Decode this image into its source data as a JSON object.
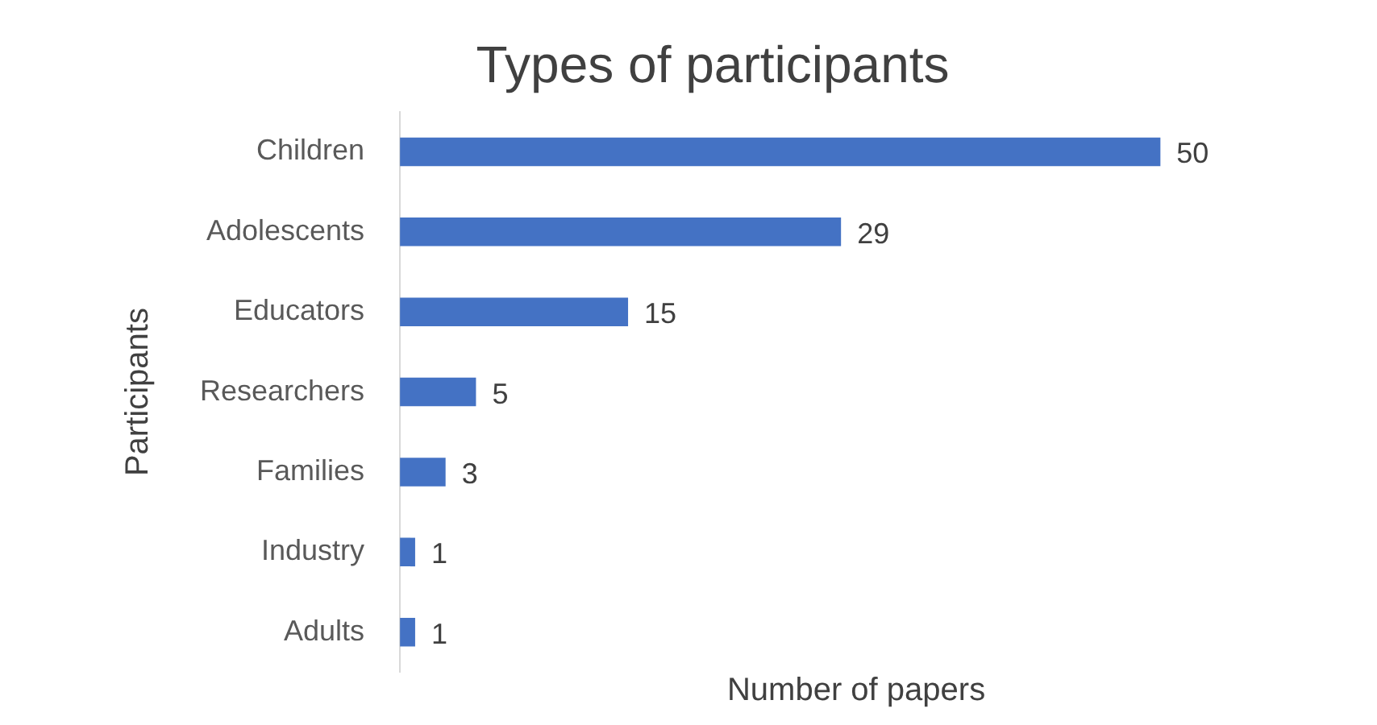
{
  "chart_data": {
    "type": "bar",
    "orientation": "horizontal",
    "title": "Types of participants",
    "xlabel": "Number of papers",
    "ylabel": "Participants",
    "categories": [
      "Children",
      "Adolescents",
      "Educators",
      "Researchers",
      "Families",
      "Industry",
      "Adults"
    ],
    "values": [
      50,
      29,
      15,
      5,
      3,
      1,
      1
    ],
    "color": "#4472c4",
    "data_labels": true,
    "grid": false,
    "legend": false,
    "tick_labels": "y"
  }
}
